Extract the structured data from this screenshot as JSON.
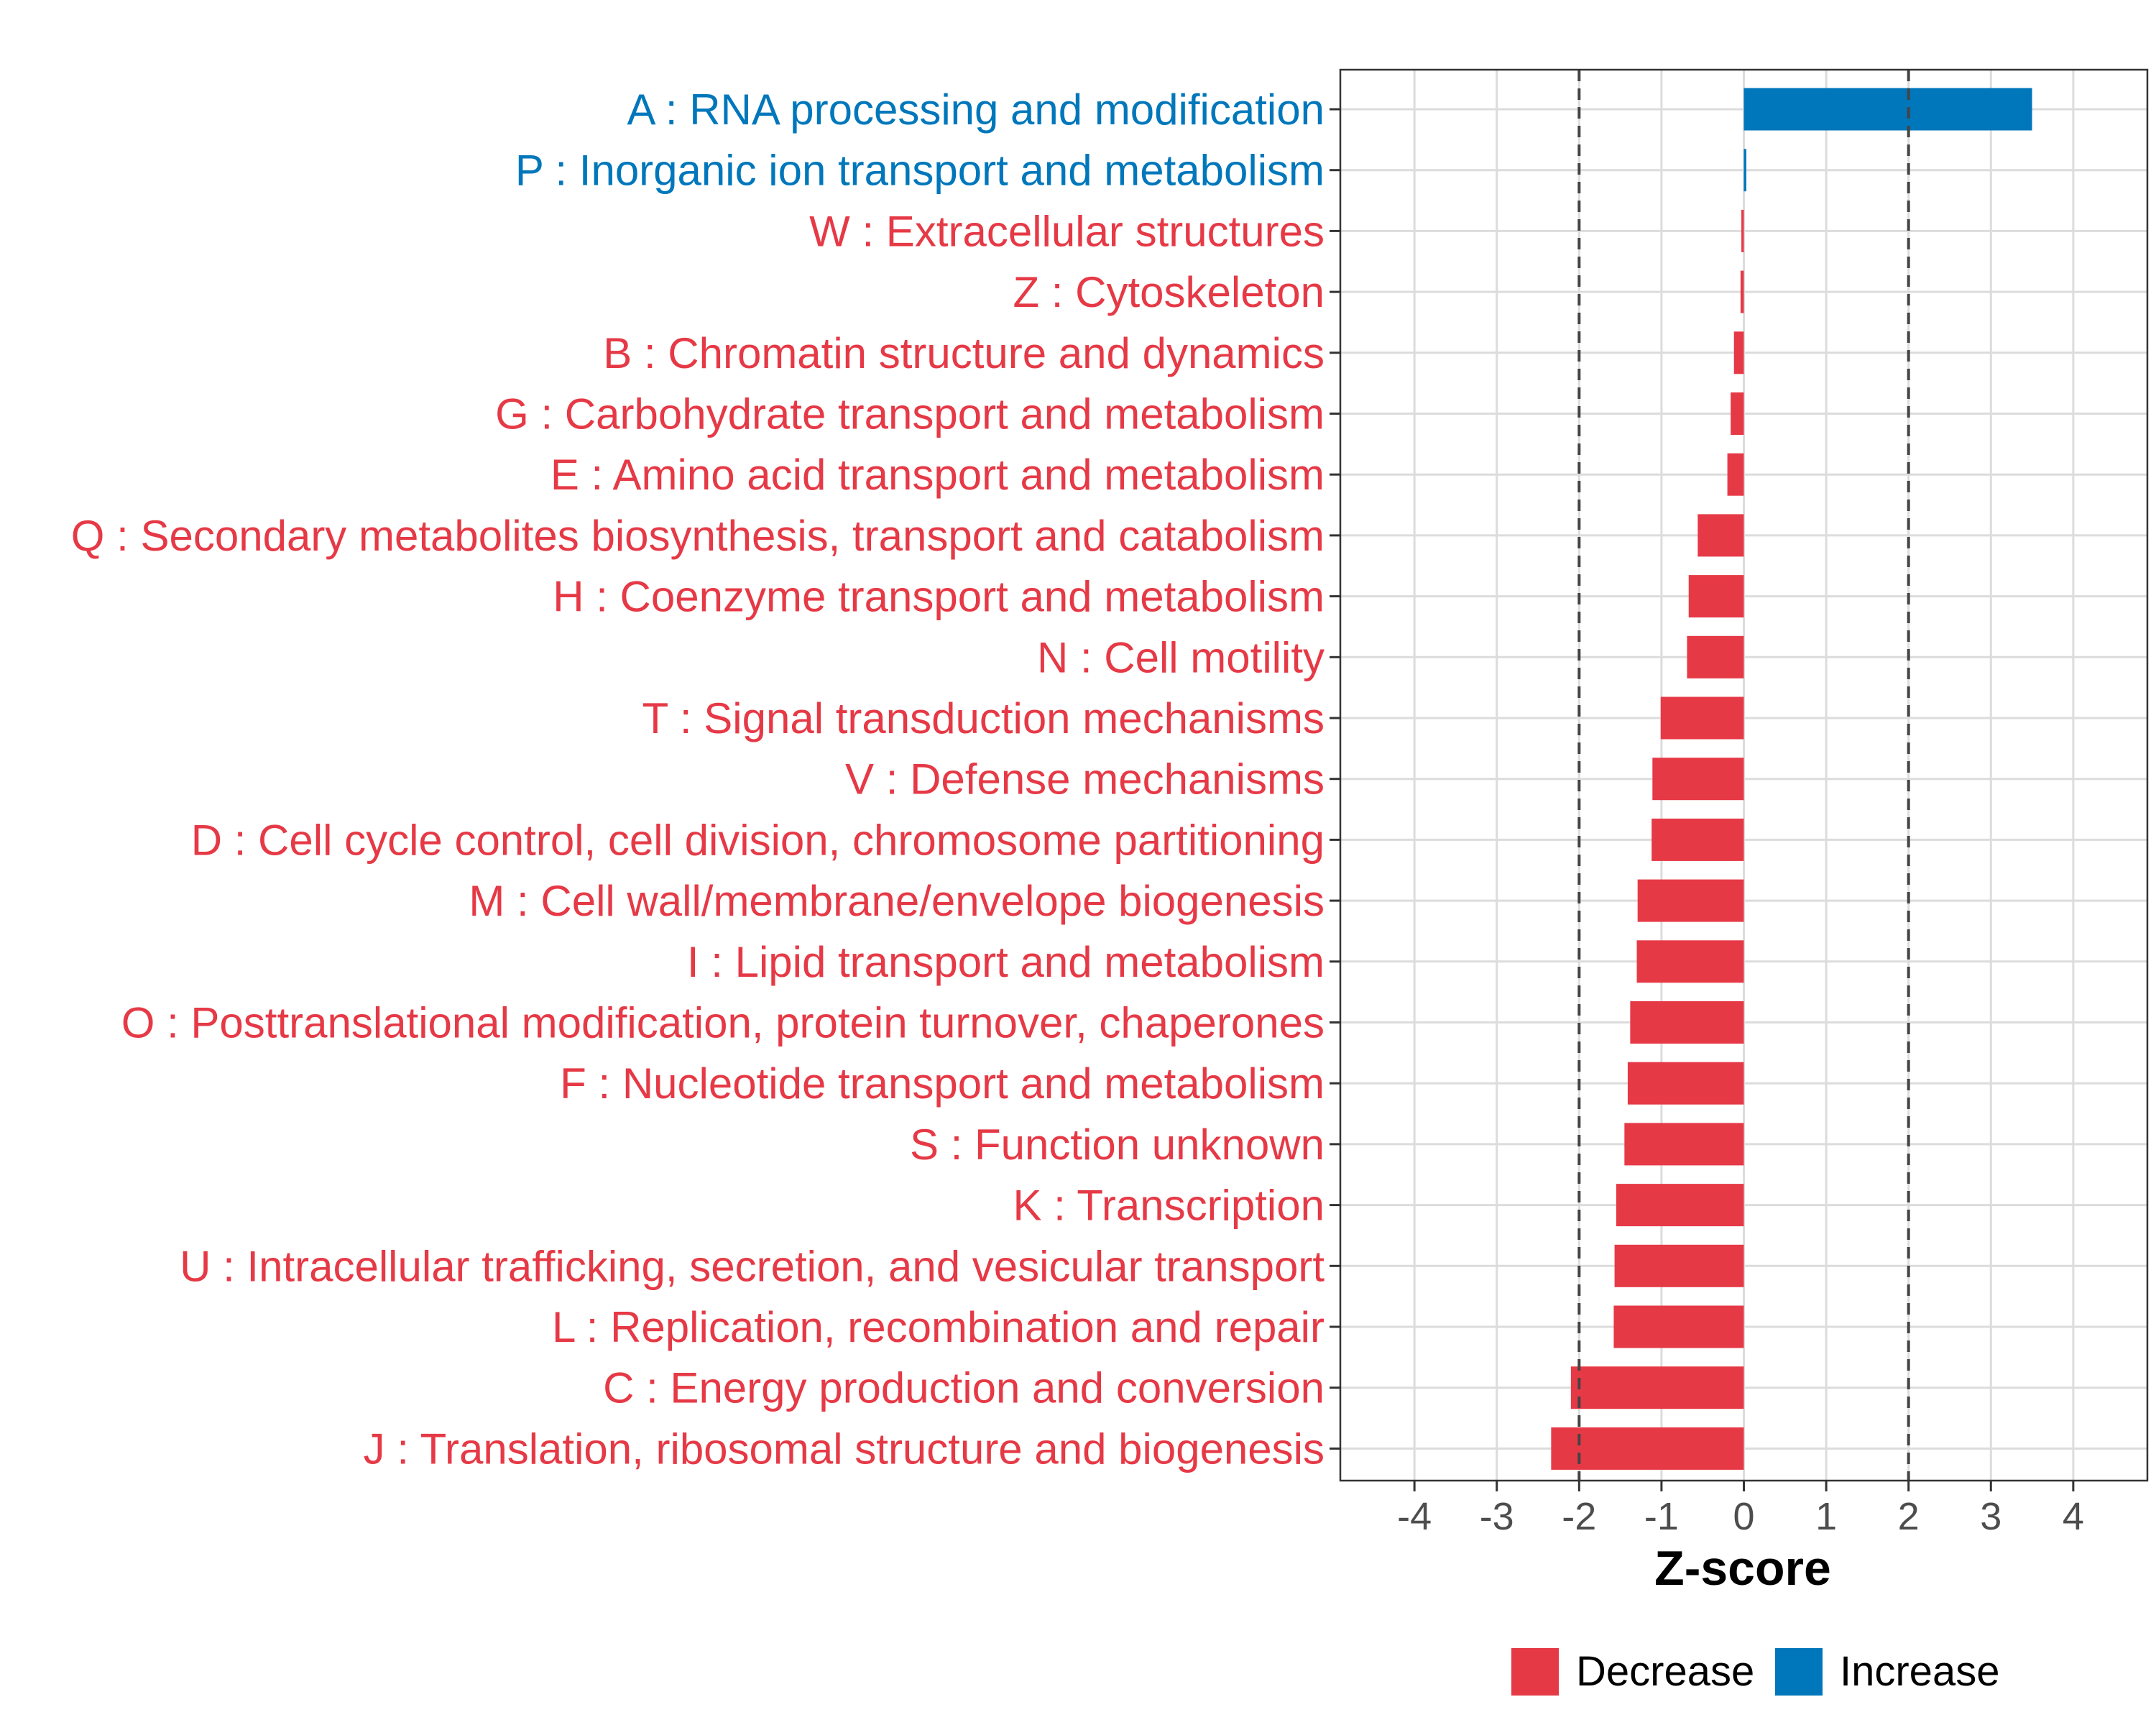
{
  "chart_data": {
    "type": "bar",
    "orientation": "horizontal",
    "categories": [
      "A : RNA processing and modification",
      "P : Inorganic ion transport and metabolism",
      "W : Extracellular structures",
      "Z : Cytoskeleton",
      "B : Chromatin structure and dynamics",
      "G : Carbohydrate transport and metabolism",
      "E : Amino acid transport and metabolism",
      "Q : Secondary metabolites biosynthesis, transport and catabolism",
      "H : Coenzyme transport and metabolism",
      "N : Cell motility",
      "T : Signal transduction mechanisms",
      "V : Defense mechanisms",
      "D : Cell cycle control, cell division, chromosome partitioning",
      "M : Cell wall/membrane/envelope biogenesis",
      "I : Lipid transport and metabolism",
      "O : Posttranslational modification, protein turnover, chaperones",
      "F : Nucleotide transport and metabolism",
      "S : Function unknown",
      "K : Transcription",
      "U : Intracellular trafficking, secretion, and vesicular transport",
      "L : Replication, recombination and repair",
      "C : Energy production and conversion",
      "J : Translation, ribosomal structure and biogenesis"
    ],
    "values": [
      3.5,
      0.03,
      -0.03,
      -0.04,
      -0.12,
      -0.16,
      -0.2,
      -0.56,
      -0.67,
      -0.69,
      -1.01,
      -1.11,
      -1.12,
      -1.29,
      -1.3,
      -1.38,
      -1.41,
      -1.45,
      -1.55,
      -1.57,
      -1.58,
      -2.1,
      -2.34
    ],
    "groups": [
      "Increase",
      "Increase",
      "Decrease",
      "Decrease",
      "Decrease",
      "Decrease",
      "Decrease",
      "Decrease",
      "Decrease",
      "Decrease",
      "Decrease",
      "Decrease",
      "Decrease",
      "Decrease",
      "Decrease",
      "Decrease",
      "Decrease",
      "Decrease",
      "Decrease",
      "Decrease",
      "Decrease",
      "Decrease",
      "Decrease"
    ],
    "xlabel": "Z-score",
    "ylabel": "",
    "xlim": [
      -4.9,
      4.9
    ],
    "xticks": [
      -4,
      -3,
      -2,
      -1,
      0,
      1,
      2,
      3,
      4
    ],
    "xtick_labels": [
      "-4",
      "-3",
      "-2",
      "-1",
      "0",
      "1",
      "2",
      "3",
      "4"
    ],
    "reference_lines": [
      -2,
      2
    ],
    "grid": true,
    "legend": {
      "placement": "bottom",
      "items": [
        {
          "label": "Decrease",
          "color": "#e63946"
        },
        {
          "label": "Increase",
          "color": "#0077bb"
        }
      ]
    },
    "colors": {
      "Decrease": "#e63946",
      "Increase": "#0077bb"
    }
  }
}
